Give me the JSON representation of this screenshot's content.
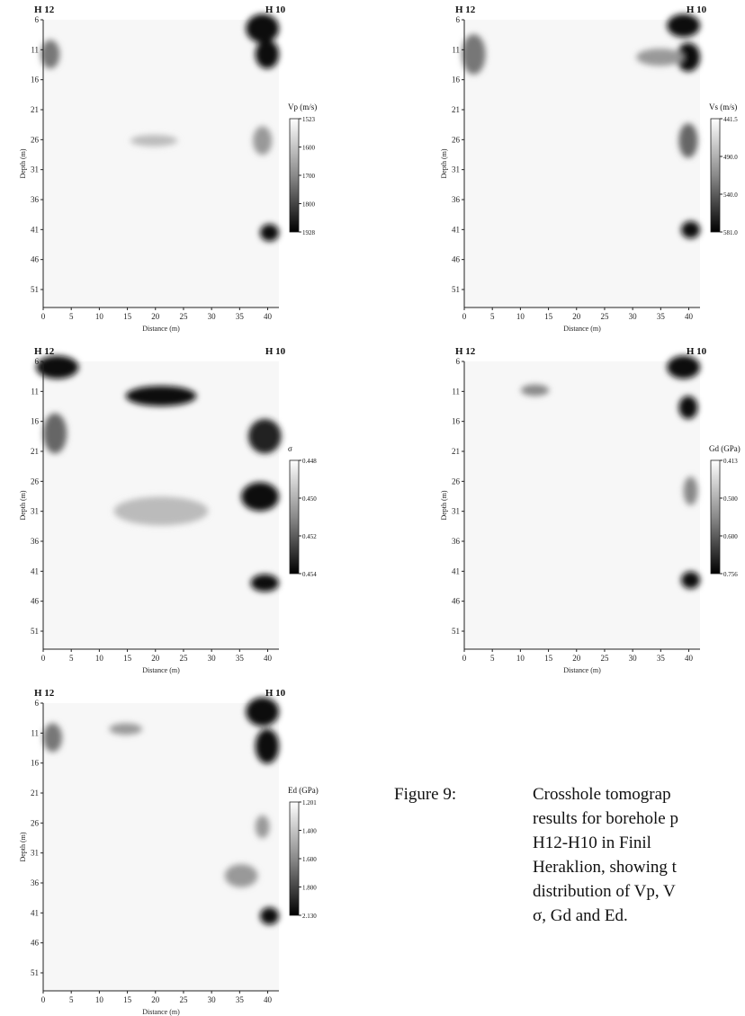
{
  "chart_data": [
    {
      "type": "heatmap",
      "parameter": "Vp",
      "left_borehole": "H 12",
      "right_borehole": "H 10",
      "xlabel": "Distance (m)",
      "ylabel": "Depth (m)",
      "x_ticks": [
        "0",
        "5",
        "10",
        "15",
        "20",
        "25",
        "30",
        "35",
        "40"
      ],
      "y_ticks": [
        "6",
        "11",
        "16",
        "21",
        "26",
        "31",
        "36",
        "41",
        "46",
        "51"
      ],
      "xlim": [
        0,
        42
      ],
      "ylim": [
        6,
        54
      ],
      "colorbar": {
        "title": "Vp (m/s)",
        "labels": [
          "1523",
          "1600",
          "1700",
          "1800",
          "1928"
        ]
      }
    },
    {
      "type": "heatmap",
      "parameter": "Vs",
      "left_borehole": "H 12",
      "right_borehole": "H 10",
      "xlabel": "Distance (m)",
      "ylabel": "Depth (m)",
      "x_ticks": [
        "0",
        "5",
        "10",
        "15",
        "20",
        "25",
        "30",
        "35",
        "40"
      ],
      "y_ticks": [
        "6",
        "11",
        "16",
        "21",
        "26",
        "31",
        "36",
        "41",
        "46",
        "51"
      ],
      "xlim": [
        0,
        42
      ],
      "ylim": [
        6,
        54
      ],
      "colorbar": {
        "title": "Vs (m/s)",
        "labels": [
          "441.5",
          "490.0",
          "540.0",
          "581.0"
        ]
      }
    },
    {
      "type": "heatmap",
      "parameter": "σ",
      "left_borehole": "H 12",
      "right_borehole": "H 10",
      "xlabel": "Distance (m)",
      "ylabel": "Depth (m)",
      "x_ticks": [
        "0",
        "5",
        "10",
        "15",
        "20",
        "25",
        "30",
        "35",
        "40"
      ],
      "y_ticks": [
        "6",
        "11",
        "16",
        "21",
        "26",
        "31",
        "36",
        "41",
        "46",
        "51"
      ],
      "xlim": [
        0,
        42
      ],
      "ylim": [
        6,
        54
      ],
      "colorbar": {
        "title": "σ",
        "labels": [
          "0.448",
          "0.450",
          "0.452",
          "0.454"
        ]
      }
    },
    {
      "type": "heatmap",
      "parameter": "Gd",
      "left_borehole": "H 12",
      "right_borehole": "H 10",
      "xlabel": "Distance (m)",
      "ylabel": "Depth (m)",
      "x_ticks": [
        "0",
        "5",
        "10",
        "15",
        "20",
        "25",
        "30",
        "35",
        "40"
      ],
      "y_ticks": [
        "6",
        "11",
        "16",
        "21",
        "26",
        "31",
        "36",
        "41",
        "46",
        "51"
      ],
      "xlim": [
        0,
        42
      ],
      "ylim": [
        6,
        54
      ],
      "colorbar": {
        "title": "Gd (GPa)",
        "labels": [
          "0.413",
          "0.500",
          "0.600",
          "0.756"
        ]
      }
    },
    {
      "type": "heatmap",
      "parameter": "Ed",
      "left_borehole": "H 12",
      "right_borehole": "H 10",
      "xlabel": "Distance (m)",
      "ylabel": "Depth (m)",
      "x_ticks": [
        "0",
        "5",
        "10",
        "15",
        "20",
        "25",
        "30",
        "35",
        "40"
      ],
      "y_ticks": [
        "6",
        "11",
        "16",
        "21",
        "26",
        "31",
        "36",
        "41",
        "46",
        "51"
      ],
      "xlim": [
        0,
        42
      ],
      "ylim": [
        6,
        54
      ],
      "colorbar": {
        "title": "Ed (GPa)",
        "labels": [
          "1.201",
          "1.400",
          "1.600",
          "1.800",
          "2.130"
        ]
      }
    }
  ],
  "caption": {
    "label": "Figure 9:",
    "lines": [
      "Crosshole tomograp",
      "results for borehole p",
      "H12-H10 in Finil",
      "Heraklion, showing t",
      "distribution of Vp, V",
      "σ, Gd and Ed."
    ]
  }
}
